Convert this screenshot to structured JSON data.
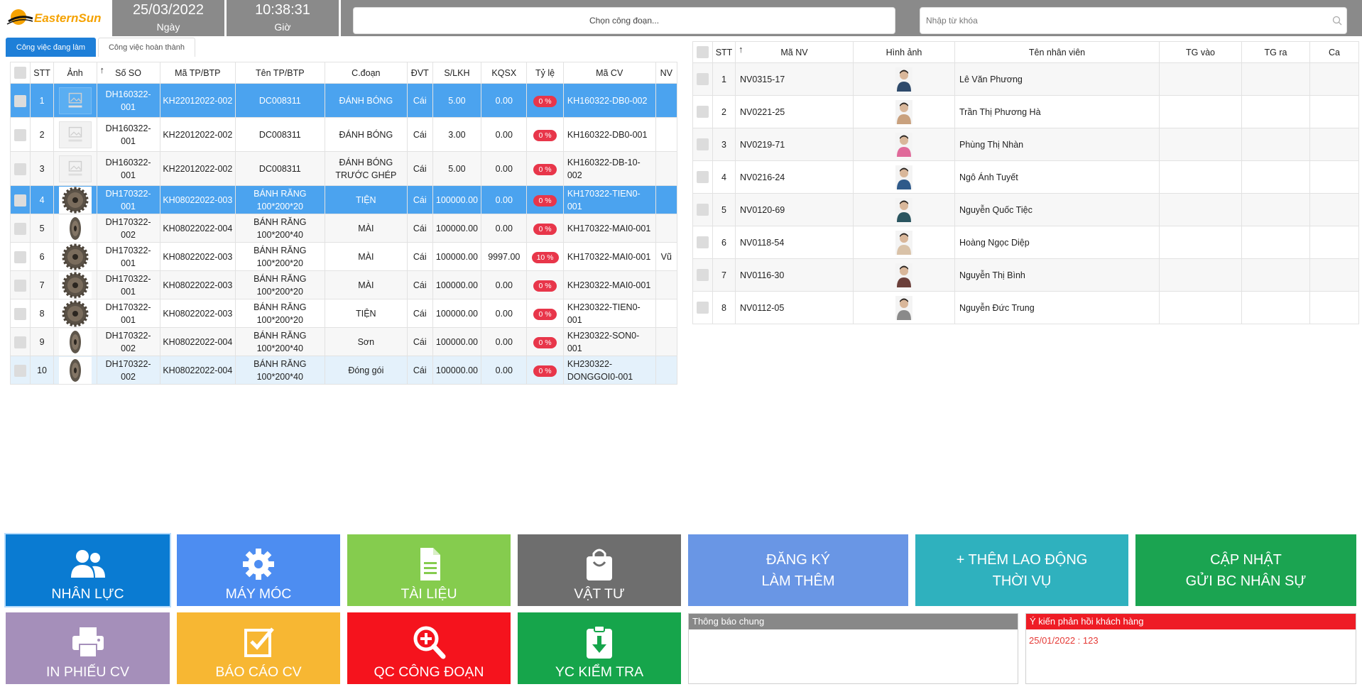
{
  "header": {
    "logo_text": "EasternSun",
    "date_value": "25/03/2022",
    "date_label": "Ngày",
    "time_value": "10:38:31",
    "time_label": "Giờ",
    "stage_select_placeholder": "Chọn công đoạn...",
    "search_placeholder": "Nhập từ khóa"
  },
  "tabs": [
    {
      "label": "Công việc đang làm",
      "active": true
    },
    {
      "label": "Công việc hoàn thành",
      "active": false
    }
  ],
  "jobs_table": {
    "columns": [
      "STT",
      "Ảnh",
      "Số SO",
      "Mã TP/BTP",
      "Tên TP/BTP",
      "C.đoạn",
      "ĐVT",
      "S/LKH",
      "KQSX",
      "Tỷ lệ",
      "Mã CV",
      "NV"
    ],
    "rows": [
      {
        "stt": "1",
        "image": "no-image",
        "so": "DH160322-001",
        "ma_tp": "KH22012022-002",
        "ten_tp": "DC008311",
        "cdoan": "ĐÁNH BÓNG",
        "dvt": "Cái",
        "slkh": "5.00",
        "kqsx": "0.00",
        "tyle": "0 %",
        "ma_cv": "KH160322-DB0-002",
        "nv": "",
        "state": "selected"
      },
      {
        "stt": "2",
        "image": "no-image",
        "so": "DH160322-001",
        "ma_tp": "KH22012022-002",
        "ten_tp": "DC008311",
        "cdoan": "ĐÁNH BÓNG",
        "dvt": "Cái",
        "slkh": "3.00",
        "kqsx": "0.00",
        "tyle": "0 %",
        "ma_cv": "KH160322-DB0-001",
        "nv": "",
        "state": "normal"
      },
      {
        "stt": "3",
        "image": "no-image",
        "so": "DH160322-001",
        "ma_tp": "KH22012022-002",
        "ten_tp": "DC008311",
        "cdoan": "ĐÁNH BÓNG TRƯỚC GHÉP",
        "dvt": "Cái",
        "slkh": "5.00",
        "kqsx": "0.00",
        "tyle": "0 %",
        "ma_cv": "KH160322-DB-10-002",
        "nv": "",
        "state": "alt"
      },
      {
        "stt": "4",
        "image": "gear-front",
        "so": "DH170322-001",
        "ma_tp": "KH08022022-003",
        "ten_tp": "BÁNH RĂNG 100*200*20",
        "cdoan": "TIỆN",
        "dvt": "Cái",
        "slkh": "100000.00",
        "kqsx": "0.00",
        "tyle": "0 %",
        "ma_cv": "KH170322-TIEN0-001",
        "nv": "",
        "state": "selected"
      },
      {
        "stt": "5",
        "image": "gear-side",
        "so": "DH170322-002",
        "ma_tp": "KH08022022-004",
        "ten_tp": "BÁNH RĂNG 100*200*40",
        "cdoan": "MÀI",
        "dvt": "Cái",
        "slkh": "100000.00",
        "kqsx": "0.00",
        "tyle": "0 %",
        "ma_cv": "KH170322-MAI0-001",
        "nv": "",
        "state": "alt"
      },
      {
        "stt": "6",
        "image": "gear-front",
        "so": "DH170322-001",
        "ma_tp": "KH08022022-003",
        "ten_tp": "BÁNH RĂNG 100*200*20",
        "cdoan": "MÀI",
        "dvt": "Cái",
        "slkh": "100000.00",
        "kqsx": "9997.00",
        "tyle": "10 %",
        "ma_cv": "KH170322-MAI0-001",
        "nv": "Vũ",
        "state": "normal"
      },
      {
        "stt": "7",
        "image": "gear-front",
        "so": "DH170322-001",
        "ma_tp": "KH08022022-003",
        "ten_tp": "BÁNH RĂNG 100*200*20",
        "cdoan": "MÀI",
        "dvt": "Cái",
        "slkh": "100000.00",
        "kqsx": "0.00",
        "tyle": "0 %",
        "ma_cv": "KH230322-MAI0-001",
        "nv": "",
        "state": "alt"
      },
      {
        "stt": "8",
        "image": "gear-front",
        "so": "DH170322-001",
        "ma_tp": "KH08022022-003",
        "ten_tp": "BÁNH RĂNG 100*200*20",
        "cdoan": "TIỆN",
        "dvt": "Cái",
        "slkh": "100000.00",
        "kqsx": "0.00",
        "tyle": "0 %",
        "ma_cv": "KH230322-TIEN0-001",
        "nv": "",
        "state": "normal"
      },
      {
        "stt": "9",
        "image": "gear-side",
        "so": "DH170322-002",
        "ma_tp": "KH08022022-004",
        "ten_tp": "BÁNH RĂNG 100*200*40",
        "cdoan": "Sơn",
        "dvt": "Cái",
        "slkh": "100000.00",
        "kqsx": "0.00",
        "tyle": "0 %",
        "ma_cv": "KH230322-SON0-001",
        "nv": "",
        "state": "alt"
      },
      {
        "stt": "10",
        "image": "gear-side",
        "so": "DH170322-002",
        "ma_tp": "KH08022022-004",
        "ten_tp": "BÁNH RĂNG 100*200*40",
        "cdoan": "Đóng gói",
        "dvt": "Cái",
        "slkh": "100000.00",
        "kqsx": "0.00",
        "tyle": "0 %",
        "ma_cv": "KH230322-DONGGOI0-001",
        "nv": "",
        "state": "light"
      }
    ]
  },
  "employee_table": {
    "columns": [
      "STT",
      "Mã NV",
      "Hình ảnh",
      "Tên nhân viên",
      "TG vào",
      "TG ra",
      "Ca"
    ],
    "rows": [
      {
        "stt": "1",
        "ma_nv": "NV0315-17",
        "name": "Lê Văn Phương",
        "tg_vao": "",
        "tg_ra": "",
        "ca": "",
        "avatar_color": "#2e4a6b"
      },
      {
        "stt": "2",
        "ma_nv": "NV0221-25",
        "name": "Trần Thị Phương Hà",
        "tg_vao": "",
        "tg_ra": "",
        "ca": "",
        "avatar_color": "#c9a17e"
      },
      {
        "stt": "3",
        "ma_nv": "NV0219-71",
        "name": "Phùng Thị Nhàn",
        "tg_vao": "",
        "tg_ra": "",
        "ca": "",
        "avatar_color": "#e06a9a"
      },
      {
        "stt": "4",
        "ma_nv": "NV0216-24",
        "name": "Ngô Ánh Tuyết",
        "tg_vao": "",
        "tg_ra": "",
        "ca": "",
        "avatar_color": "#2f5a8a"
      },
      {
        "stt": "5",
        "ma_nv": "NV0120-69",
        "name": "Nguyễn Quốc Tiệc",
        "tg_vao": "",
        "tg_ra": "",
        "ca": "",
        "avatar_color": "#2a5560"
      },
      {
        "stt": "6",
        "ma_nv": "NV0118-54",
        "name": "Hoàng Ngọc Diệp",
        "tg_vao": "",
        "tg_ra": "",
        "ca": "",
        "avatar_color": "#d9c2a8"
      },
      {
        "stt": "7",
        "ma_nv": "NV0116-30",
        "name": "Nguyễn Thị Bình",
        "tg_vao": "",
        "tg_ra": "",
        "ca": "",
        "avatar_color": "#6b3f3a"
      },
      {
        "stt": "8",
        "ma_nv": "NV0112-05",
        "name": "Nguyễn Đức Trung",
        "tg_vao": "",
        "tg_ra": "",
        "ca": "",
        "avatar_color": "#8a8a8a"
      }
    ]
  },
  "tiles": {
    "nhan_luc": "NHÂN LỰC",
    "may_moc": "MÁY MÓC",
    "tai_lieu": "TÀI LIỆU",
    "vat_tu": "VẬT TƯ",
    "dang_ky_line1": "ĐĂNG KÝ",
    "dang_ky_line2": "LÀM THÊM",
    "them_ld_line1": "+ THÊM LAO ĐỘNG",
    "them_ld_line2": "THỜI VỤ",
    "cap_nhat_line1": "CẬP NHẬT",
    "cap_nhat_line2": "GỬI BC NHÂN SỰ",
    "in_phieu": "IN PHIẾU CV",
    "bao_cao": "BÁO CÁO CV",
    "qc": "QC CÔNG ĐOẠN",
    "yc_kiem_tra": "YC KIỂM TRA"
  },
  "panels": {
    "notice_title": "Thông báo chung",
    "notice_body": "",
    "feedback_title": "Ý kiến phản hồi khách hàng",
    "feedback_body": "25/01/2022 : 123"
  },
  "colors": {
    "selected_row": "#4ba3ef",
    "badge_red": "#e8364a",
    "tab_active": "#1e7fd8"
  }
}
